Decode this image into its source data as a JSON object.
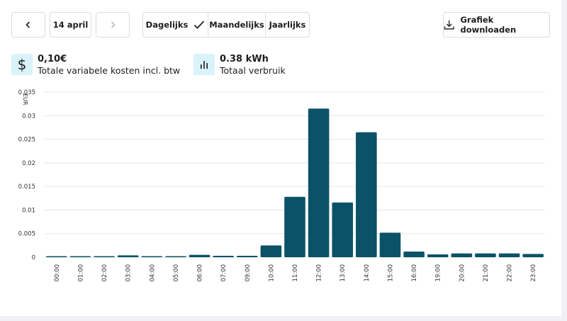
{
  "nav": {
    "date_label": "14 april",
    "prev_icon": "chevron-left-icon",
    "next_icon": "chevron-right-icon"
  },
  "period_tabs": [
    {
      "label": "Dagelijks",
      "selected": true
    },
    {
      "label": "Maandelijks",
      "selected": false
    },
    {
      "label": "Jaarlijks",
      "selected": false
    }
  ],
  "download": {
    "label": "Grafiek downloaden",
    "icon": "download-icon"
  },
  "stats": {
    "cost": {
      "value": "0,10€",
      "label": "Totale variabele kosten incl. btw",
      "icon": "dollar-icon"
    },
    "usage": {
      "value": "0.38 kWh",
      "label": "Totaal verbruik",
      "icon": "bar-chart-icon"
    }
  },
  "colors": {
    "bar": "#0b5268",
    "grid": "#e6e6ea",
    "icon_bg": "#d9f3fb"
  },
  "chart_data": {
    "type": "bar",
    "ylabel": "EUR",
    "ylim": [
      0,
      0.035
    ],
    "yticks": [
      "0",
      "0.005",
      "0.01",
      "0.015",
      "0.02",
      "0.025",
      "0.03",
      "0.035"
    ],
    "grid": true,
    "categories": [
      "00:00",
      "01:00",
      "02:00",
      "03:00",
      "04:00",
      "05:00",
      "06:00",
      "07:00",
      "09:00",
      "10:00",
      "11:00",
      "12:00",
      "13:00",
      "14:00",
      "15:00",
      "16:00",
      "19:00",
      "20:00",
      "21:00",
      "22:00",
      "23:00"
    ],
    "values": [
      0.0002,
      0.0002,
      0.0002,
      0.0004,
      0.0002,
      0.0002,
      0.0005,
      0.0003,
      0.0003,
      0.0025,
      0.0128,
      0.0315,
      0.0116,
      0.0265,
      0.0052,
      0.0012,
      0.0006,
      0.0008,
      0.0008,
      0.0008,
      0.0007
    ]
  }
}
